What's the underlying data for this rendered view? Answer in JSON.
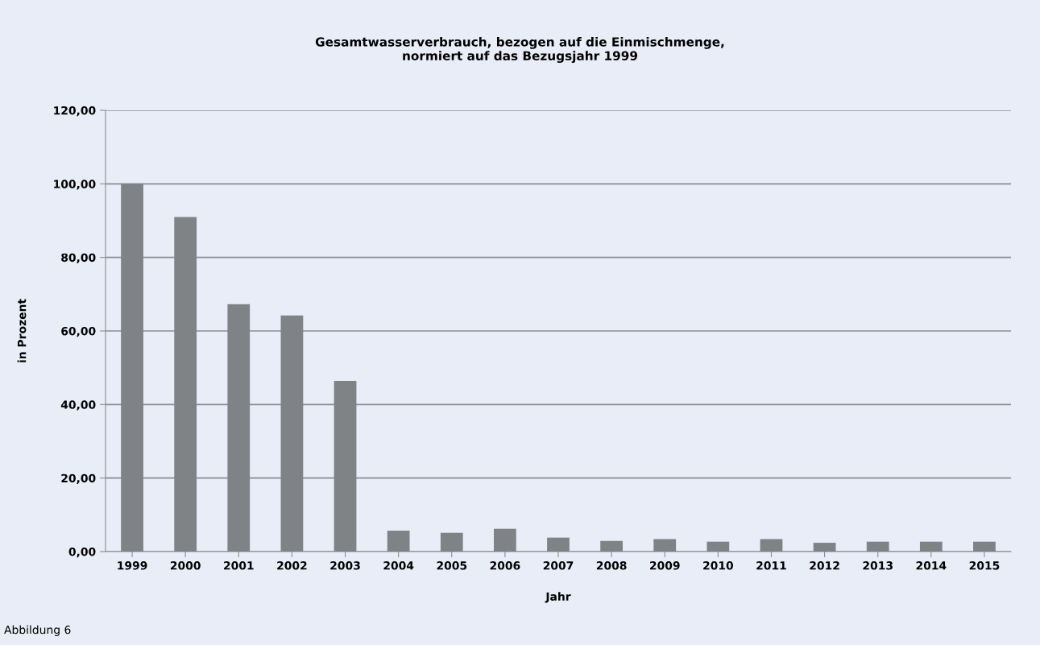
{
  "chart_data": {
    "type": "bar",
    "title": "Gesamtwasserverbrauch, bezogen auf die Einmischmenge,\nnormiert auf das Bezugsjahr 1999",
    "xlabel": "Jahr",
    "ylabel": "in Prozent",
    "categories": [
      "1999",
      "2000",
      "2001",
      "2002",
      "2003",
      "2004",
      "2005",
      "2006",
      "2007",
      "2008",
      "2009",
      "2010",
      "2011",
      "2012",
      "2013",
      "2014",
      "2015"
    ],
    "values": [
      100,
      91.0,
      67.3,
      64.2,
      46.4,
      5.7,
      5.1,
      6.2,
      3.8,
      2.9,
      3.4,
      2.7,
      3.4,
      2.4,
      2.7,
      2.7,
      2.7
    ],
    "color": "#7f8385",
    "ylim": [
      0,
      120
    ],
    "yticks": [
      {
        "value": 0,
        "label": "0,00"
      },
      {
        "value": 20,
        "label": "20,00"
      },
      {
        "value": 40,
        "label": "40,00"
      },
      {
        "value": 60,
        "label": "60,00"
      },
      {
        "value": 80,
        "label": "80,00"
      },
      {
        "value": 100,
        "label": "100,00"
      },
      {
        "value": 120,
        "label": "120,00"
      }
    ],
    "grid": "y",
    "annotations": [
      "Abbildung 6"
    ]
  }
}
